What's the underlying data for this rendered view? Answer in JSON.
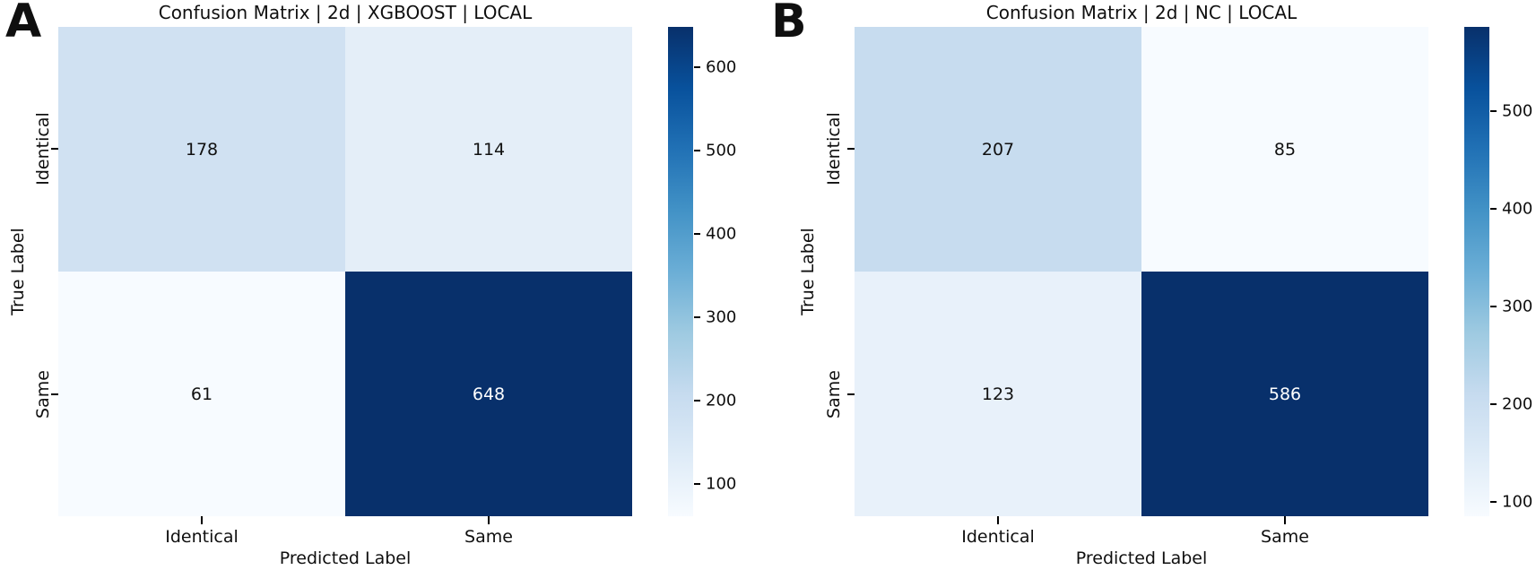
{
  "figure": {
    "background": "#ffffff",
    "text_color": "#0f0f0f",
    "colormap": "Blues",
    "colormap_stops": [
      "#f7fbff",
      "#deebf7",
      "#c6dbef",
      "#9ecae1",
      "#6baed6",
      "#4292c6",
      "#2171b5",
      "#08519c",
      "#08306b"
    ]
  },
  "chart_data": [
    {
      "type": "heatmap",
      "panel_label": "A",
      "title": "Confusion Matrix | 2d | XGBOOST | LOCAL",
      "xlabel": "Predicted Label",
      "ylabel": "True Label",
      "x_categories": [
        "Identical",
        "Same"
      ],
      "y_categories": [
        "Identical",
        "Same"
      ],
      "values": [
        [
          178,
          114
        ],
        [
          61,
          648
        ]
      ],
      "cell_colors": [
        [
          "#d0e1f2",
          "#e4eef8"
        ],
        [
          "#f7fbff",
          "#08306b"
        ]
      ],
      "text_colors": [
        [
          "#111111",
          "#111111"
        ],
        [
          "#111111",
          "#ffffff"
        ]
      ],
      "legend_position": "right",
      "grid": false,
      "colorbar": {
        "vmin": 61,
        "vmax": 648,
        "ticks": [
          100,
          200,
          300,
          400,
          500,
          600
        ]
      }
    },
    {
      "type": "heatmap",
      "panel_label": "B",
      "title": "Confusion Matrix | 2d | NC | LOCAL",
      "xlabel": "Predicted Label",
      "ylabel": "True Label",
      "x_categories": [
        "Identical",
        "Same"
      ],
      "y_categories": [
        "Identical",
        "Same"
      ],
      "values": [
        [
          207,
          85
        ],
        [
          123,
          586
        ]
      ],
      "cell_colors": [
        [
          "#c7dcef",
          "#f7fbff"
        ],
        [
          "#e8f1fa",
          "#08306b"
        ]
      ],
      "text_colors": [
        [
          "#111111",
          "#111111"
        ],
        [
          "#111111",
          "#ffffff"
        ]
      ],
      "legend_position": "right",
      "grid": false,
      "colorbar": {
        "vmin": 85,
        "vmax": 586,
        "ticks": [
          100,
          200,
          300,
          400,
          500
        ]
      }
    }
  ]
}
